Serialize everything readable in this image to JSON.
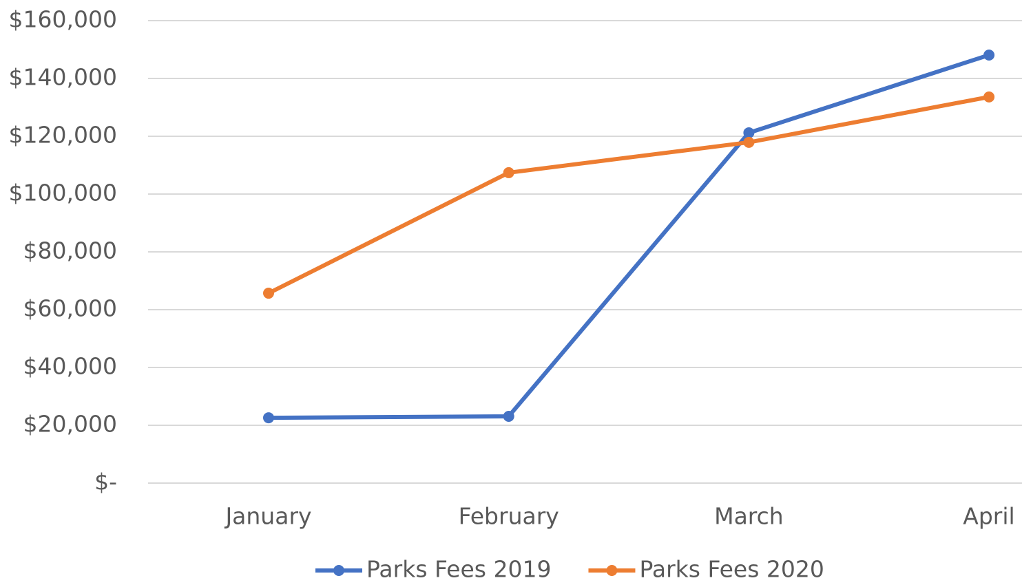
{
  "chart_data": {
    "type": "line",
    "categories": [
      "January",
      "February",
      "March",
      "April"
    ],
    "series": [
      {
        "name": "Parks Fees 2019",
        "color": "#4472c4",
        "values": [
          22600,
          23100,
          121200,
          148100
        ]
      },
      {
        "name": "Parks Fees 2020",
        "color": "#ed7d31",
        "values": [
          65700,
          107400,
          117900,
          133600
        ]
      }
    ],
    "ylim": [
      0,
      160000
    ],
    "yticks": [
      {
        "value": 0,
        "label": "$-"
      },
      {
        "value": 20000,
        "label": "$20,000"
      },
      {
        "value": 40000,
        "label": "$40,000"
      },
      {
        "value": 60000,
        "label": "$60,000"
      },
      {
        "value": 80000,
        "label": "$80,000"
      },
      {
        "value": 100000,
        "label": "$100,000"
      },
      {
        "value": 120000,
        "label": "$120,000"
      },
      {
        "value": 140000,
        "label": "$140,000"
      },
      {
        "value": 160000,
        "label": "$160,000"
      }
    ],
    "grid": true,
    "legend": "bottom"
  }
}
